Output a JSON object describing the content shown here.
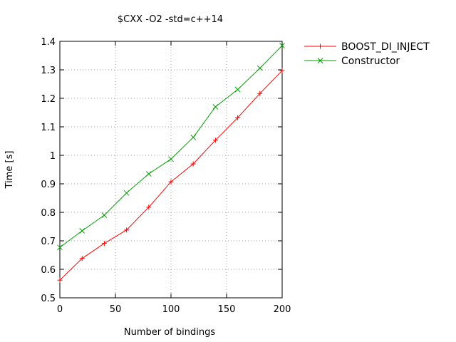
{
  "chart_data": {
    "type": "line",
    "title": "$CXX -O2 -std=c++14",
    "xlabel": "Number of bindings",
    "ylabel": "Time [s]",
    "xlim": [
      0,
      200
    ],
    "ylim": [
      0.5,
      1.4
    ],
    "xticks": [
      0,
      50,
      100,
      150,
      200
    ],
    "yticks": [
      0.5,
      0.6,
      0.7,
      0.8,
      0.9,
      1,
      1.1,
      1.2,
      1.3,
      1.4
    ],
    "grid": true,
    "legend_position": "outside-right-top",
    "x": [
      0,
      20,
      40,
      60,
      80,
      100,
      120,
      140,
      160,
      180,
      200
    ],
    "series": [
      {
        "name": "BOOST_DI_INJECT",
        "color": "#ff0000",
        "marker": "plus",
        "values": [
          0.562,
          0.638,
          0.691,
          0.738,
          0.818,
          0.907,
          0.97,
          1.053,
          1.132,
          1.217,
          1.297
        ]
      },
      {
        "name": "Constructor",
        "color": "#00a000",
        "marker": "cross",
        "values": [
          0.677,
          0.735,
          0.79,
          0.868,
          0.935,
          0.987,
          1.063,
          1.17,
          1.231,
          1.306,
          1.385
        ]
      }
    ]
  }
}
